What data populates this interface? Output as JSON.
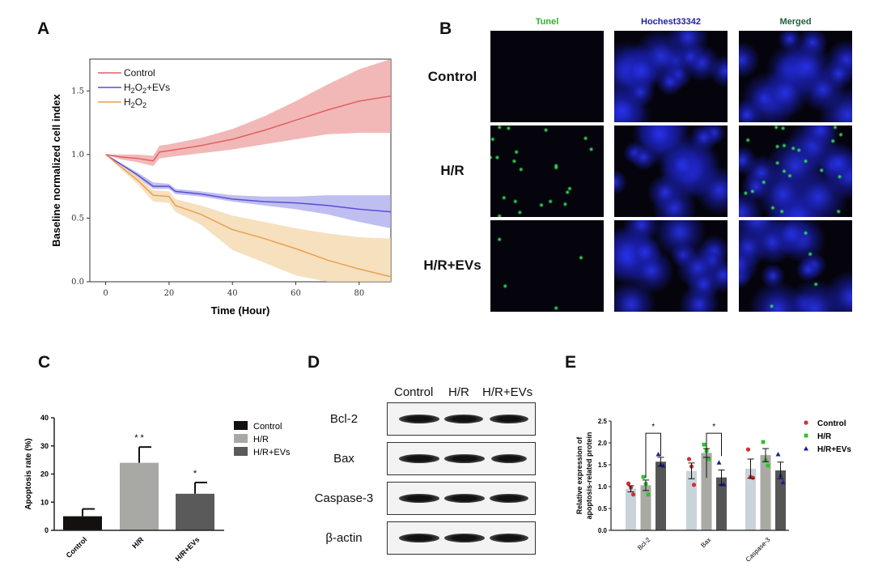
{
  "panels": {
    "a": "A",
    "b": "B",
    "c": "C",
    "d": "D",
    "e": "E"
  },
  "chart_data": [
    {
      "panel": "A",
      "type": "line",
      "xlabel": "Time (Hour)",
      "ylabel": "Baseline normalized cell index",
      "xlim": [
        -5,
        90
      ],
      "ylim": [
        0,
        1.75
      ],
      "xticks": [
        0,
        20,
        40,
        60,
        80
      ],
      "yticks": [
        "0.0",
        "0.5",
        "1.0",
        "1.5"
      ],
      "legend_position": "top-left",
      "series": [
        {
          "name": "Control",
          "name_html": "Control",
          "color": "#e06060",
          "band_color": "#eda0a0",
          "x": [
            0,
            5,
            10,
            15,
            17,
            20,
            30,
            40,
            50,
            60,
            70,
            80,
            90
          ],
          "y": [
            1.0,
            0.98,
            0.97,
            0.95,
            1.02,
            1.03,
            1.07,
            1.12,
            1.19,
            1.27,
            1.35,
            1.42,
            1.46
          ],
          "lower": [
            1.0,
            0.96,
            0.94,
            0.91,
            0.97,
            0.98,
            1.01,
            1.04,
            1.08,
            1.12,
            1.16,
            1.17,
            1.17
          ],
          "upper": [
            1.0,
            1.0,
            1.0,
            0.99,
            1.07,
            1.08,
            1.13,
            1.2,
            1.3,
            1.42,
            1.55,
            1.67,
            1.75
          ]
        },
        {
          "name": "H2O2+EVs",
          "name_html": "H<sub>2</sub>O<sub>2</sub>+EVs",
          "color": "#5a50d0",
          "band_color": "#aaa8ec",
          "x": [
            0,
            5,
            10,
            15,
            20,
            22,
            30,
            40,
            50,
            60,
            70,
            80,
            90
          ],
          "y": [
            1.0,
            0.92,
            0.84,
            0.75,
            0.75,
            0.71,
            0.69,
            0.65,
            0.63,
            0.62,
            0.6,
            0.57,
            0.55
          ],
          "lower": [
            1.0,
            0.91,
            0.82,
            0.73,
            0.73,
            0.69,
            0.67,
            0.63,
            0.6,
            0.57,
            0.53,
            0.47,
            0.42
          ],
          "upper": [
            1.0,
            0.93,
            0.86,
            0.78,
            0.77,
            0.73,
            0.71,
            0.68,
            0.67,
            0.67,
            0.68,
            0.68,
            0.68
          ]
        },
        {
          "name": "H2O2",
          "name_html": "H<sub>2</sub>O<sub>2</sub>",
          "color": "#e8a050",
          "band_color": "#f3d6a8",
          "x": [
            0,
            5,
            10,
            15,
            20,
            22,
            30,
            40,
            50,
            60,
            70,
            80,
            90
          ],
          "y": [
            1.0,
            0.9,
            0.8,
            0.68,
            0.67,
            0.6,
            0.53,
            0.41,
            0.34,
            0.26,
            0.17,
            0.1,
            0.04
          ],
          "lower": [
            1.0,
            0.88,
            0.77,
            0.63,
            0.62,
            0.55,
            0.45,
            0.25,
            0.15,
            0.05,
            0.0,
            0.0,
            0.0
          ],
          "upper": [
            1.0,
            0.92,
            0.83,
            0.72,
            0.71,
            0.65,
            0.6,
            0.52,
            0.47,
            0.42,
            0.38,
            0.35,
            0.34
          ]
        }
      ]
    },
    {
      "panel": "C",
      "type": "bar",
      "ylabel": "Apoptosis rate (%)",
      "ylim": [
        0,
        40
      ],
      "yticks": [
        "0",
        "10",
        "20",
        "30",
        "40"
      ],
      "categories": [
        "Control",
        "H/R",
        "H/R+EVs"
      ],
      "values": [
        5,
        24,
        13
      ],
      "errors": [
        2.6,
        5.6,
        4
      ],
      "significance": [
        "",
        "* *",
        "*"
      ],
      "colors": [
        "#141010",
        "#a8a8a4",
        "#5a5a5a"
      ],
      "legend_position": "right",
      "legend": [
        "Control",
        "H/R",
        "H/R+EVs"
      ]
    },
    {
      "panel": "E",
      "type": "bar",
      "ylabel": [
        "Relative expression of",
        "apoptosis-related protein"
      ],
      "ylim": [
        0,
        2.5
      ],
      "yticks": [
        "0.0",
        "0.5",
        "1.0",
        "1.5",
        "2.0",
        "2.5"
      ],
      "categories": [
        "Bcl-2",
        "Bax",
        "Caspase-3"
      ],
      "legend_position": "right",
      "series": [
        {
          "name": "Control",
          "bar_color": "#c9d3da",
          "point_color": "#d03030",
          "marker": "circle",
          "values": [
            0.95,
            1.36,
            1.41
          ],
          "errors": [
            0.07,
            0.18,
            0.22
          ],
          "points": [
            [
              1.07,
              0.98,
              0.82
            ],
            [
              1.63,
              1.46,
              1.04
            ],
            [
              1.85,
              1.22,
              1.2
            ]
          ]
        },
        {
          "name": "H/R",
          "bar_color": "#a9aaa4",
          "point_color": "#30c030",
          "marker": "square",
          "values": [
            1.03,
            1.77,
            1.72
          ],
          "errors": [
            0.12,
            0.1,
            0.15
          ],
          "points": [
            [
              1.22,
              1.06,
              0.82
            ],
            [
              1.96,
              1.82,
              1.63
            ],
            [
              2.02,
              1.6,
              1.48
            ]
          ]
        },
        {
          "name": "H/R+EVs",
          "bar_color": "#555555",
          "point_color": "#1a2090",
          "marker": "triangle",
          "values": [
            1.57,
            1.21,
            1.37
          ],
          "errors": [
            0.1,
            0.17,
            0.19
          ],
          "points": [
            [
              1.74,
              1.5,
              1.48
            ],
            [
              1.55,
              1.05,
              1.05
            ],
            [
              1.74,
              1.26,
              1.1
            ]
          ]
        }
      ],
      "significance": [
        {
          "category": "Bcl-2",
          "between": [
            "H/R",
            "H/R+EVs"
          ],
          "label": "*"
        },
        {
          "category": "Bax",
          "between": [
            "H/R",
            "H/R+EVs"
          ],
          "label": "*"
        }
      ]
    }
  ],
  "panel_b": {
    "columns": [
      "Tunel",
      "Hochest33342",
      "Merged"
    ],
    "column_colors": [
      "#30b030",
      "#2020a0",
      "#206040"
    ],
    "rows": [
      "Control",
      "H/R",
      "H/R+EVs"
    ]
  },
  "panel_d": {
    "columns": [
      "Control",
      "H/R",
      "H/R+EVs"
    ],
    "rows": [
      "Bcl-2",
      "Bax",
      "Caspase-3",
      "β-actin"
    ]
  }
}
